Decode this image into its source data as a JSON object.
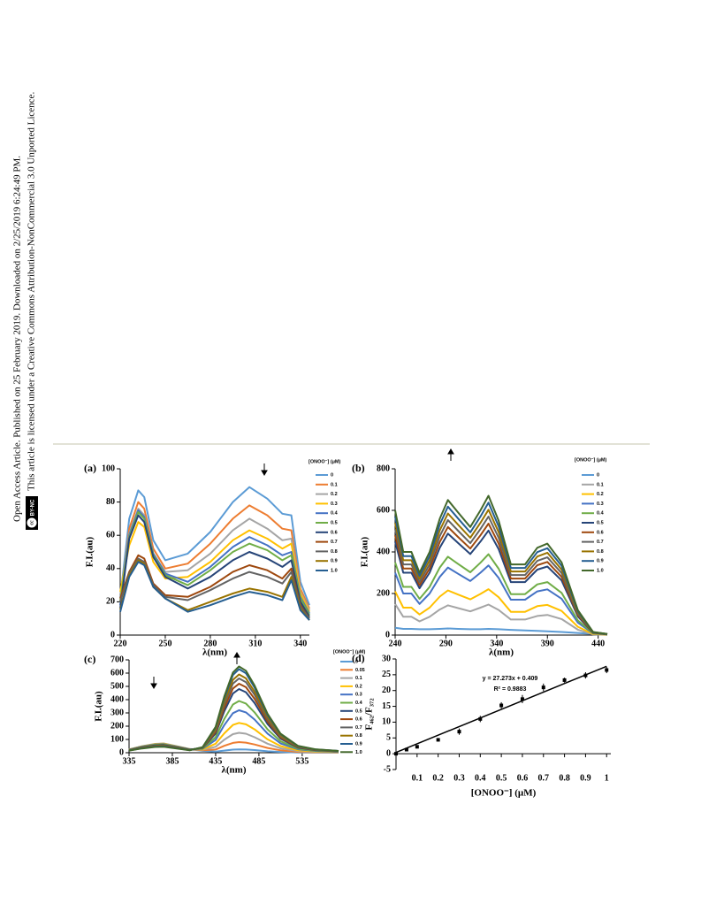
{
  "side_text": [
    "Open Access Article. Published on 25 February 2019. Downloaded on 2/25/2019 6:24:49 PM.",
    "This article is licensed under a Creative Commons Attribution-NonCommercial 3.0 Unported Licence."
  ],
  "license_badge": {
    "icon": "cc",
    "text": "BY-NC"
  },
  "chart_data": [
    {
      "type": "line",
      "panel": "(a)",
      "ylabel": "F.I.(au)",
      "xlabel": "λ(nm)",
      "legend_title": "[ONOO⁻] (µM)",
      "x": [
        220,
        226,
        232,
        236,
        242,
        250,
        265,
        280,
        295,
        306,
        318,
        328,
        334,
        340,
        346
      ],
      "xlim": [
        220,
        346
      ],
      "ylim": [
        0,
        100
      ],
      "xticks": [
        220,
        250,
        280,
        310,
        340
      ],
      "yticks": [
        0,
        20,
        40,
        60,
        80,
        100
      ],
      "series": [
        {
          "name": "0",
          "color": "#5b9bd5",
          "values": [
            22,
            70,
            87,
            83,
            57,
            45,
            49,
            62,
            80,
            89,
            82,
            73,
            72,
            32,
            18
          ]
        },
        {
          "name": "0.1",
          "color": "#ed7d31",
          "values": [
            20,
            64,
            80,
            76,
            52,
            40,
            43,
            55,
            70,
            78,
            72,
            64,
            63,
            28,
            16
          ]
        },
        {
          "name": "0.2",
          "color": "#a5a5a5",
          "values": [
            24,
            61,
            76,
            72,
            49,
            38,
            39,
            49,
            63,
            70,
            64,
            57,
            58,
            26,
            15
          ]
        },
        {
          "name": "0.3",
          "color": "#ffc000",
          "values": [
            26,
            54,
            68,
            65,
            44,
            34,
            35,
            44,
            57,
            63,
            58,
            52,
            55,
            25,
            14
          ]
        },
        {
          "name": "0.4",
          "color": "#4472c4",
          "values": [
            18,
            60,
            75,
            71,
            49,
            37,
            32,
            41,
            53,
            59,
            54,
            48,
            50,
            23,
            13
          ]
        },
        {
          "name": "0.5",
          "color": "#70ad47",
          "values": [
            20,
            59,
            74,
            70,
            48,
            36,
            30,
            39,
            50,
            55,
            51,
            45,
            48,
            22,
            12
          ]
        },
        {
          "name": "0.6",
          "color": "#264478",
          "values": [
            16,
            58,
            72,
            68,
            47,
            35,
            28,
            35,
            45,
            50,
            46,
            41,
            45,
            20,
            11
          ]
        },
        {
          "name": "0.7",
          "color": "#9e480e",
          "values": [
            22,
            38,
            48,
            46,
            31,
            24,
            23,
            29,
            38,
            42,
            39,
            34,
            40,
            18,
            10
          ]
        },
        {
          "name": "0.8",
          "color": "#636363",
          "values": [
            20,
            37,
            46,
            44,
            30,
            23,
            21,
            27,
            34,
            38,
            35,
            31,
            38,
            17,
            10
          ]
        },
        {
          "name": "0.9",
          "color": "#997300",
          "values": [
            15,
            36,
            45,
            43,
            29,
            22,
            15,
            20,
            25,
            28,
            26,
            23,
            35,
            16,
            9
          ]
        },
        {
          "name": "1.0",
          "color": "#255e91",
          "values": [
            14,
            35,
            44,
            42,
            29,
            22,
            14,
            18,
            23,
            26,
            24,
            21,
            33,
            15,
            9
          ]
        }
      ]
    },
    {
      "type": "line",
      "panel": "(b)",
      "ylabel": "F.I.(au)",
      "xlabel": "λ(nm)",
      "legend_title": "[ONOO⁻] (µM)",
      "x": [
        240,
        248,
        256,
        264,
        274,
        284,
        292,
        302,
        314,
        324,
        332,
        342,
        354,
        368,
        380,
        390,
        404,
        420,
        435,
        449
      ],
      "xlim": [
        240,
        449
      ],
      "ylim": [
        0,
        800
      ],
      "xticks": [
        240,
        290,
        340,
        390,
        440
      ],
      "yticks": [
        0,
        200,
        400,
        600,
        800
      ],
      "series": [
        {
          "name": "0",
          "color": "#5b9bd5",
          "values": [
            35,
            30,
            30,
            28,
            28,
            30,
            32,
            30,
            28,
            28,
            30,
            28,
            25,
            22,
            20,
            18,
            15,
            10,
            5,
            3
          ]
        },
        {
          "name": "0.1",
          "color": "#a5a5a5",
          "values": [
            150,
            88,
            88,
            66,
            88,
            123,
            143,
            130,
            114,
            132,
            147,
            121,
            75,
            75,
            92,
            97,
            77,
            26,
            3,
            1
          ]
        },
        {
          "name": "0.2",
          "color": "#ffc000",
          "values": [
            210,
            132,
            132,
            99,
            132,
            185,
            215,
            195,
            172,
            198,
            221,
            182,
            112,
            112,
            139,
            145,
            116,
            40,
            5,
            2
          ]
        },
        {
          "name": "0.3",
          "color": "#4472c4",
          "values": [
            300,
            200,
            200,
            150,
            200,
            280,
            325,
            295,
            260,
            300,
            335,
            275,
            170,
            170,
            210,
            220,
            175,
            60,
            8,
            3
          ]
        },
        {
          "name": "0.4",
          "color": "#70ad47",
          "values": [
            350,
            232,
            232,
            174,
            232,
            325,
            377,
            342,
            302,
            348,
            389,
            319,
            197,
            197,
            244,
            255,
            203,
            70,
            9,
            3
          ]
        },
        {
          "name": "0.5",
          "color": "#264478",
          "values": [
            450,
            300,
            300,
            225,
            300,
            420,
            488,
            443,
            390,
            450,
            503,
            413,
            255,
            255,
            315,
            330,
            263,
            90,
            11,
            4
          ]
        },
        {
          "name": "0.6",
          "color": "#9e480e",
          "values": [
            480,
            320,
            320,
            240,
            320,
            448,
            520,
            472,
            416,
            480,
            536,
            440,
            272,
            272,
            336,
            352,
            280,
            96,
            12,
            4
          ]
        },
        {
          "name": "0.7",
          "color": "#636363",
          "values": [
            510,
            340,
            340,
            255,
            340,
            476,
            553,
            502,
            442,
            510,
            570,
            468,
            289,
            289,
            357,
            374,
            298,
            102,
            13,
            4
          ]
        },
        {
          "name": "0.8",
          "color": "#997300",
          "values": [
            540,
            360,
            360,
            270,
            360,
            504,
            585,
            531,
            468,
            540,
            603,
            495,
            306,
            306,
            378,
            396,
            315,
            108,
            14,
            5
          ]
        },
        {
          "name": "0.9",
          "color": "#255e91",
          "values": [
            570,
            380,
            380,
            285,
            380,
            532,
            618,
            561,
            494,
            570,
            637,
            523,
            323,
            323,
            399,
            418,
            333,
            114,
            14,
            5
          ]
        },
        {
          "name": "1.0",
          "color": "#43682b",
          "values": [
            600,
            400,
            400,
            300,
            400,
            560,
            650,
            590,
            520,
            600,
            670,
            550,
            340,
            340,
            420,
            440,
            350,
            120,
            15,
            5
          ]
        }
      ]
    },
    {
      "type": "line",
      "panel": "(c)",
      "ylabel": "F.I.(au)",
      "xlabel": "λ(nm)",
      "legend_title": "[ONOO⁻] (µM)",
      "x": [
        335,
        350,
        365,
        375,
        390,
        405,
        420,
        435,
        445,
        455,
        462,
        470,
        480,
        495,
        510,
        530,
        550,
        577
      ],
      "xlim": [
        335,
        577
      ],
      "ylim": [
        0,
        700
      ],
      "xticks": [
        335,
        385,
        435,
        485,
        535
      ],
      "yticks": [
        0,
        100,
        200,
        300,
        400,
        500,
        600,
        700
      ],
      "series": [
        {
          "name": "0",
          "color": "#5b9bd5",
          "values": [
            23,
            46,
            62,
            65,
            46,
            26,
            14,
            8,
            16,
            23,
            25,
            24,
            20,
            11,
            6,
            2,
            1,
            1
          ]
        },
        {
          "name": "0.05",
          "color": "#ed7d31",
          "values": [
            24,
            48,
            65,
            68,
            48,
            27,
            18,
            24,
            52,
            74,
            80,
            76,
            62,
            36,
            18,
            6,
            3,
            2
          ]
        },
        {
          "name": "0.1",
          "color": "#a5a5a5",
          "values": [
            25,
            49,
            67,
            70,
            49,
            28,
            22,
            45,
            98,
            140,
            150,
            143,
            117,
            68,
            33,
            12,
            6,
            3
          ]
        },
        {
          "name": "0.2",
          "color": "#ffc000",
          "values": [
            24,
            48,
            65,
            68,
            48,
            27,
            25,
            68,
            146,
            209,
            225,
            214,
            176,
            101,
            50,
            18,
            9,
            5
          ]
        },
        {
          "name": "0.3",
          "color": "#4472c4",
          "values": [
            23,
            46,
            62,
            65,
            46,
            26,
            29,
            96,
            208,
            298,
            320,
            304,
            250,
            144,
            70,
            26,
            13,
            6
          ]
        },
        {
          "name": "0.4",
          "color": "#70ad47",
          "values": [
            22,
            43,
            59,
            62,
            43,
            25,
            32,
            117,
            254,
            363,
            390,
            371,
            304,
            176,
            86,
            31,
            16,
            8
          ]
        },
        {
          "name": "0.5",
          "color": "#264478",
          "values": [
            20,
            41,
            55,
            58,
            41,
            23,
            36,
            144,
            312,
            446,
            480,
            456,
            374,
            216,
            106,
            38,
            19,
            10
          ]
        },
        {
          "name": "0.6",
          "color": "#9e480e",
          "values": [
            19,
            39,
            52,
            55,
            39,
            22,
            37,
            156,
            338,
            484,
            520,
            494,
            406,
            234,
            114,
            42,
            21,
            10
          ]
        },
        {
          "name": "0.7",
          "color": "#636363",
          "values": [
            18,
            36,
            49,
            52,
            36,
            21,
            38,
            168,
            364,
            521,
            560,
            532,
            437,
            252,
            123,
            45,
            22,
            11
          ]
        },
        {
          "name": "0.8",
          "color": "#997300",
          "values": [
            18,
            35,
            48,
            50,
            35,
            20,
            40,
            177,
            384,
            549,
            590,
            561,
            460,
            266,
            130,
            47,
            24,
            12
          ]
        },
        {
          "name": "0.9",
          "color": "#255e91",
          "values": [
            17,
            34,
            46,
            48,
            34,
            19,
            41,
            189,
            410,
            586,
            630,
            599,
            491,
            284,
            139,
            50,
            25,
            13
          ]
        },
        {
          "name": "1.0",
          "color": "#43682b",
          "values": [
            16,
            32,
            43,
            45,
            32,
            18,
            42,
            195,
            423,
            605,
            650,
            618,
            507,
            293,
            143,
            52,
            26,
            13
          ]
        }
      ]
    },
    {
      "type": "scatter",
      "panel": "(d)",
      "ylabel": "F₄₆₂/F₃₇₂",
      "xlabel": "[ONOO⁻] (µM)",
      "color": "#000000",
      "x": [
        0,
        0.05,
        0.1,
        0.2,
        0.3,
        0.4,
        0.5,
        0.6,
        0.7,
        0.8,
        0.9,
        1
      ],
      "values": [
        0,
        1.3,
        2.2,
        4.4,
        7,
        11,
        15.3,
        17.3,
        21,
        23.3,
        24.8,
        26.5
      ],
      "errors": [
        0.3,
        0.4,
        0.5,
        0.5,
        1,
        1,
        1,
        1.3,
        1.2,
        0.8,
        1,
        1
      ],
      "fit": {
        "slope": 27.273,
        "intercept": 0.409
      },
      "annotations": [
        "y = 27.273x + 0.409",
        "R² = 0.9883"
      ],
      "xlim": [
        0,
        1.02
      ],
      "ylim": [
        -5,
        30
      ],
      "xticks": [
        0.1,
        0.2,
        0.3,
        0.4,
        0.5,
        0.6,
        0.7,
        0.8,
        0.9,
        1
      ],
      "yticks": [
        -5,
        0,
        5,
        10,
        15,
        20,
        25,
        30
      ]
    }
  ]
}
